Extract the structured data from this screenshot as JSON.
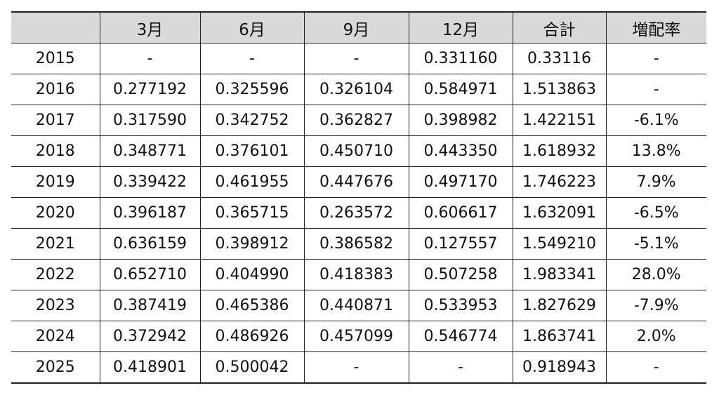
{
  "table": {
    "headers": [
      "",
      "3月",
      "6月",
      "9月",
      "12月",
      "合計",
      "増配率"
    ],
    "rows": [
      [
        "2015",
        "-",
        "-",
        "-",
        "0.331160",
        "0.33116",
        "-"
      ],
      [
        "2016",
        "0.277192",
        "0.325596",
        "0.326104",
        "0.584971",
        "1.513863",
        "-"
      ],
      [
        "2017",
        "0.317590",
        "0.342752",
        "0.362827",
        "0.398982",
        "1.422151",
        "-6.1%"
      ],
      [
        "2018",
        "0.348771",
        "0.376101",
        "0.450710",
        "0.443350",
        "1.618932",
        "13.8%"
      ],
      [
        "2019",
        "0.339422",
        "0.461955",
        "0.447676",
        "0.497170",
        "1.746223",
        "7.9%"
      ],
      [
        "2020",
        "0.396187",
        "0.365715",
        "0.263572",
        "0.606617",
        "1.632091",
        "-6.5%"
      ],
      [
        "2021",
        "0.636159",
        "0.398912",
        "0.386582",
        "0.127557",
        "1.549210",
        "-5.1%"
      ],
      [
        "2022",
        "0.652710",
        "0.404990",
        "0.418383",
        "0.507258",
        "1.983341",
        "28.0%"
      ],
      [
        "2023",
        "0.387419",
        "0.465386",
        "0.440871",
        "0.533953",
        "1.827629",
        "-7.9%"
      ],
      [
        "2024",
        "0.372942",
        "0.486926",
        "0.457099",
        "0.546774",
        "1.863741",
        "2.0%"
      ],
      [
        "2025",
        "0.418901",
        "0.500042",
        "-",
        "-",
        "0.918943",
        "-"
      ]
    ]
  }
}
